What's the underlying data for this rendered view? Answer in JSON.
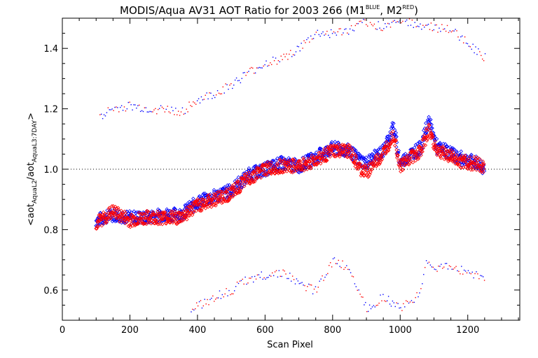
{
  "chart_data": {
    "type": "scatter",
    "title": "MODIS/Aqua AV31 AOT Ratio for 2003 266 (M1",
    "title_sup_1": "BLUE",
    "title_mid": ", M2",
    "title_sup_2": "RED",
    "title_end": ")",
    "xlabel": "Scan Pixel",
    "ylabel_parts": {
      "open": "<aot",
      "sub1": "AquaL2",
      "sep": "/aot",
      "sub2": "AquaL3:7DAY",
      "close": ">"
    },
    "xlim": [
      0,
      1354
    ],
    "ylim": [
      0.5,
      1.5
    ],
    "x_ticks": [
      0,
      200,
      400,
      600,
      800,
      1000,
      1200
    ],
    "x_tick_labels": [
      "0",
      "200",
      "400",
      "600",
      "800",
      "1000",
      "1200"
    ],
    "y_ticks": [
      0.6,
      0.8,
      1.0,
      1.2,
      1.4
    ],
    "y_tick_labels": [
      "0.6",
      "0.8",
      "1.0",
      "1.2",
      "1.4"
    ],
    "reference_line": 1.0,
    "colors": {
      "blue": "#0000ff",
      "red": "#ff0000",
      "axes": "#000000"
    },
    "series": [
      {
        "color": "blue",
        "marker": "diamond",
        "x": [
          100,
          150,
          200,
          250,
          300,
          350,
          400,
          450,
          500,
          550,
          600,
          650,
          700,
          750,
          800,
          850,
          880,
          900,
          950,
          980,
          1000,
          1030,
          1060,
          1085,
          1110,
          1140,
          1170,
          1200,
          1230,
          1250
        ],
        "values": [
          0.83,
          0.85,
          0.84,
          0.84,
          0.85,
          0.85,
          0.89,
          0.91,
          0.93,
          0.98,
          1.0,
          1.02,
          1.01,
          1.04,
          1.07,
          1.06,
          1.03,
          1.02,
          1.06,
          1.14,
          1.02,
          1.05,
          1.07,
          1.16,
          1.07,
          1.06,
          1.04,
          1.03,
          1.02,
          1.0
        ]
      },
      {
        "color": "red",
        "marker": "diamond",
        "x": [
          100,
          150,
          200,
          250,
          300,
          350,
          400,
          450,
          500,
          550,
          600,
          650,
          700,
          750,
          800,
          850,
          880,
          900,
          950,
          980,
          1000,
          1030,
          1060,
          1085,
          1110,
          1140,
          1170,
          1200,
          1230,
          1250
        ],
        "values": [
          0.82,
          0.86,
          0.83,
          0.84,
          0.84,
          0.84,
          0.88,
          0.9,
          0.92,
          0.97,
          1.0,
          1.01,
          1.01,
          1.03,
          1.06,
          1.06,
          1.0,
          0.99,
          1.05,
          1.12,
          1.01,
          1.04,
          1.06,
          1.13,
          1.06,
          1.05,
          1.03,
          1.02,
          1.02,
          1.0
        ]
      },
      {
        "color": "mixed",
        "marker": "dot",
        "x": [
          110,
          150,
          200,
          250,
          300,
          350,
          400,
          450,
          500,
          550,
          600,
          650,
          700,
          750,
          800,
          850,
          900,
          950,
          1000,
          1050,
          1100,
          1150,
          1200,
          1250
        ],
        "values": [
          1.18,
          1.2,
          1.21,
          1.2,
          1.2,
          1.19,
          1.23,
          1.25,
          1.28,
          1.32,
          1.35,
          1.37,
          1.4,
          1.45,
          1.45,
          1.46,
          1.49,
          1.47,
          1.5,
          1.48,
          1.47,
          1.46,
          1.42,
          1.37
        ]
      },
      {
        "color": "mixed",
        "marker": "dot",
        "x": [
          380,
          420,
          450,
          500,
          550,
          600,
          650,
          700,
          750,
          800,
          850,
          900,
          950,
          1000,
          1050,
          1080,
          1100,
          1150,
          1200,
          1250
        ],
        "values": [
          0.54,
          0.56,
          0.58,
          0.6,
          0.64,
          0.65,
          0.66,
          0.62,
          0.6,
          0.7,
          0.67,
          0.54,
          0.58,
          0.54,
          0.58,
          0.7,
          0.67,
          0.68,
          0.66,
          0.64
        ]
      }
    ]
  }
}
